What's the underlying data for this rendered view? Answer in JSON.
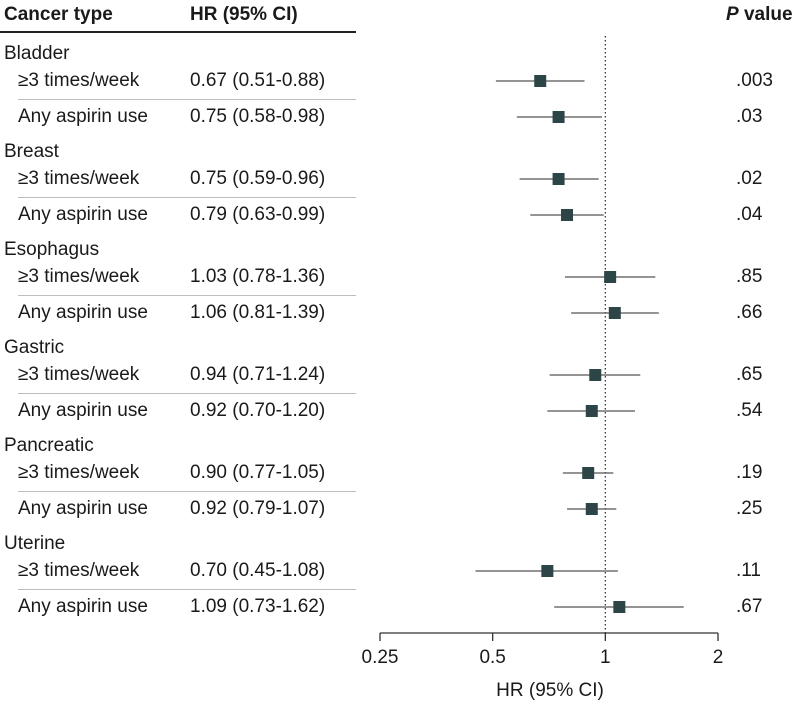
{
  "table": {
    "col_cancer": "Cancer type",
    "col_hr": "HR (95% CI)",
    "col_p_italic": "P",
    "col_p_rest": " value"
  },
  "chart_data": {
    "type": "forest",
    "xlabel": "HR (95% CI)",
    "x_scale": "log",
    "xlim": [
      0.25,
      2
    ],
    "x_ticks": [
      0.25,
      0.5,
      1,
      2
    ],
    "x_tick_labels": [
      "0.25",
      "0.5",
      "1",
      "2"
    ],
    "reference_line": 1,
    "marker_color": "#2e4548",
    "groups": [
      {
        "name": "Bladder",
        "rows": [
          {
            "label": "≥3 times/week",
            "hr": 0.67,
            "lo": 0.51,
            "hi": 0.88,
            "hr_text": "0.67 (0.51-0.88)",
            "p": ".003"
          },
          {
            "label": "Any aspirin use",
            "hr": 0.75,
            "lo": 0.58,
            "hi": 0.98,
            "hr_text": "0.75 (0.58-0.98)",
            "p": ".03"
          }
        ]
      },
      {
        "name": "Breast",
        "rows": [
          {
            "label": "≥3 times/week",
            "hr": 0.75,
            "lo": 0.59,
            "hi": 0.96,
            "hr_text": "0.75 (0.59-0.96)",
            "p": ".02"
          },
          {
            "label": "Any aspirin use",
            "hr": 0.79,
            "lo": 0.63,
            "hi": 0.99,
            "hr_text": "0.79 (0.63-0.99)",
            "p": ".04"
          }
        ]
      },
      {
        "name": "Esophagus",
        "rows": [
          {
            "label": "≥3 times/week",
            "hr": 1.03,
            "lo": 0.78,
            "hi": 1.36,
            "hr_text": "1.03 (0.78-1.36)",
            "p": ".85"
          },
          {
            "label": "Any aspirin use",
            "hr": 1.06,
            "lo": 0.81,
            "hi": 1.39,
            "hr_text": "1.06 (0.81-1.39)",
            "p": ".66"
          }
        ]
      },
      {
        "name": "Gastric",
        "rows": [
          {
            "label": "≥3 times/week",
            "hr": 0.94,
            "lo": 0.71,
            "hi": 1.24,
            "hr_text": "0.94 (0.71-1.24)",
            "p": ".65"
          },
          {
            "label": "Any aspirin use",
            "hr": 0.92,
            "lo": 0.7,
            "hi": 1.2,
            "hr_text": "0.92 (0.70-1.20)",
            "p": ".54"
          }
        ]
      },
      {
        "name": "Pancreatic",
        "rows": [
          {
            "label": "≥3 times/week",
            "hr": 0.9,
            "lo": 0.77,
            "hi": 1.05,
            "hr_text": "0.90 (0.77-1.05)",
            "p": ".19"
          },
          {
            "label": "Any aspirin use",
            "hr": 0.92,
            "lo": 0.79,
            "hi": 1.07,
            "hr_text": "0.92 (0.79-1.07)",
            "p": ".25"
          }
        ]
      },
      {
        "name": "Uterine",
        "rows": [
          {
            "label": "≥3 times/week",
            "hr": 0.7,
            "lo": 0.45,
            "hi": 1.08,
            "hr_text": "0.70 (0.45-1.08)",
            "p": ".11"
          },
          {
            "label": "Any aspirin use",
            "hr": 1.09,
            "lo": 0.73,
            "hi": 1.62,
            "hr_text": "1.09 (0.73-1.62)",
            "p": ".67"
          }
        ]
      }
    ]
  }
}
